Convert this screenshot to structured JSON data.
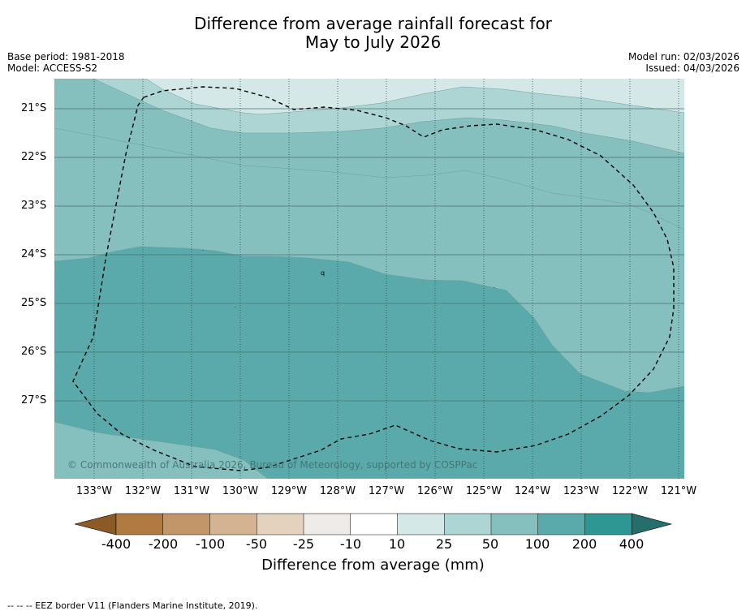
{
  "title": {
    "line1": "Difference from average rainfall forecast for",
    "line2": "May to July 2026"
  },
  "meta": {
    "base_period": "Base period: 1981-2018",
    "model": "Model: ACCESS-S2",
    "model_run": "Model run: 02/03/2026",
    "issued": "Issued: 04/03/2026"
  },
  "map": {
    "latitude_labels": [
      "21°S",
      "22°S",
      "23°S",
      "24°S",
      "25°S",
      "26°S",
      "27°S"
    ],
    "longitude_labels": [
      "133°W",
      "132°W",
      "131°W",
      "130°W",
      "129°W",
      "128°W",
      "127°W",
      "126°W",
      "125°W",
      "124°W",
      "123°W",
      "122°W",
      "121°W"
    ],
    "copyright": "© Commonwealth of Australia 2026, Bureau of Meteorology, supported by COSPPac",
    "zone_colors": {
      "c10_25": "#d4e9e7",
      "c25_50": "#acd5d3",
      "c50_100": "#85bfbe",
      "c100_200": "#5aaaab"
    },
    "eez_border_style": "dashed"
  },
  "colorbar": {
    "ticks": [
      "-400",
      "-200",
      "-100",
      "-50",
      "-25",
      "-10",
      "10",
      "25",
      "50",
      "100",
      "200",
      "400"
    ],
    "colors": [
      "#8c5a24",
      "#b07a42",
      "#c3966a",
      "#d4b393",
      "#e4d2bf",
      "#eeebe8",
      "#ffffff",
      "#d4e9e7",
      "#acd5d3",
      "#85bfbe",
      "#5aaaab",
      "#2e9793",
      "#256e6c"
    ],
    "title": "Difference from average (mm)"
  },
  "footer": "--  --  -- EEZ border V11 (Flanders Marine Institute, 2019)."
}
